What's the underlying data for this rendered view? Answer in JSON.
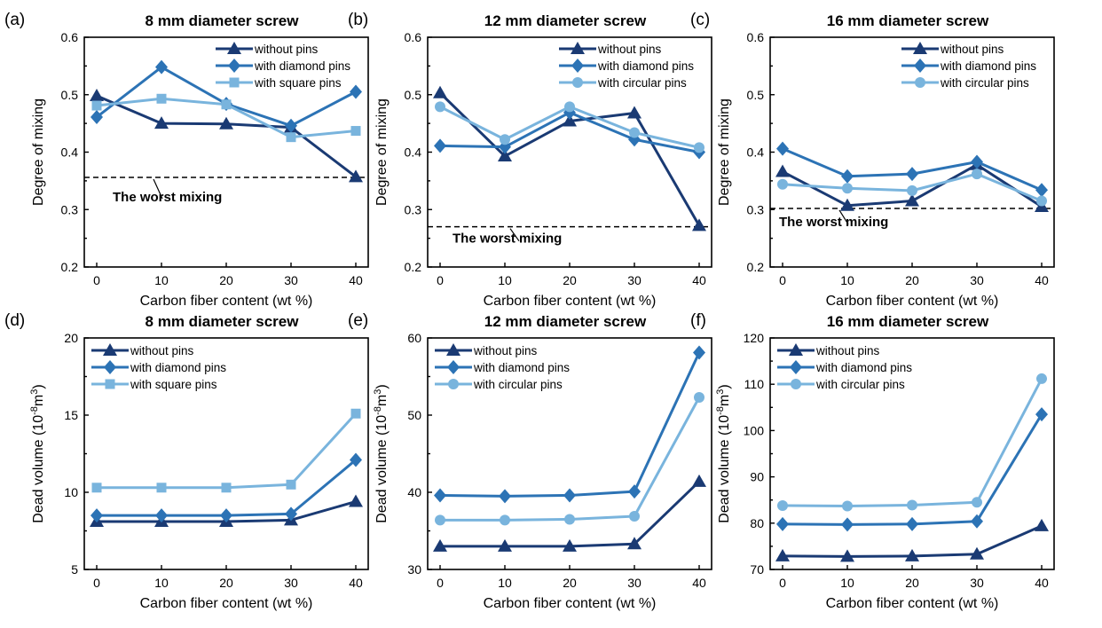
{
  "colors": {
    "without": "#1a3a73",
    "diamond": "#2c73b5",
    "light": "#79b4dd"
  },
  "chart_data": [
    {
      "type": "line",
      "panel": "(a)",
      "title": "8 mm diameter screw",
      "xlabel": "Carbon fiber content (wt %)",
      "ylabel": "Degree of mixing",
      "ylabel_sup": "",
      "ylabel_tail": "",
      "x": [
        0,
        10,
        20,
        30,
        40
      ],
      "xticks": [
        "0",
        "10",
        "20",
        "30",
        "40"
      ],
      "ylim": [
        0.2,
        0.6
      ],
      "yticks": [
        "0.2",
        "0.3",
        "0.4",
        "0.5",
        "0.6"
      ],
      "grid": false,
      "legend_position": "top-right",
      "series": [
        {
          "name": "without pins",
          "marker": "triangle",
          "color_key": "without",
          "values": [
            0.498,
            0.45,
            0.449,
            0.443,
            0.357
          ]
        },
        {
          "name": "with diamond pins",
          "marker": "diamond",
          "color_key": "diamond",
          "values": [
            0.461,
            0.548,
            0.484,
            0.446,
            0.505
          ]
        },
        {
          "name": "with square pins",
          "marker": "square",
          "color_key": "light",
          "values": [
            0.481,
            0.493,
            0.483,
            0.426,
            0.437
          ]
        }
      ],
      "reference_line": {
        "y": 0.356,
        "label": "The worst mixing"
      }
    },
    {
      "type": "line",
      "panel": "(b)",
      "title": "12 mm diameter screw",
      "xlabel": "Carbon fiber content (wt %)",
      "ylabel": "Degree of mixing",
      "ylabel_sup": "",
      "ylabel_tail": "",
      "x": [
        0,
        10,
        20,
        30,
        40
      ],
      "xticks": [
        "0",
        "10",
        "20",
        "30",
        "40"
      ],
      "ylim": [
        0.2,
        0.6
      ],
      "yticks": [
        "0.2",
        "0.3",
        "0.4",
        "0.5",
        "0.6"
      ],
      "grid": false,
      "legend_position": "top-right",
      "series": [
        {
          "name": "without pins",
          "marker": "triangle",
          "color_key": "without",
          "values": [
            0.503,
            0.393,
            0.454,
            0.468,
            0.272
          ]
        },
        {
          "name": "with diamond pins",
          "marker": "diamond",
          "color_key": "diamond",
          "values": [
            0.411,
            0.409,
            0.469,
            0.422,
            0.4
          ]
        },
        {
          "name": "with circular pins",
          "marker": "circle",
          "color_key": "light",
          "values": [
            0.479,
            0.422,
            0.479,
            0.434,
            0.408
          ]
        }
      ],
      "reference_line": {
        "y": 0.27,
        "label": "The worst mixing"
      }
    },
    {
      "type": "line",
      "panel": "(c)",
      "title": "16 mm diameter screw",
      "xlabel": "Carbon fiber content (wt %)",
      "ylabel": "Degree of mixing",
      "ylabel_sup": "",
      "ylabel_tail": "",
      "x": [
        0,
        10,
        20,
        30,
        40
      ],
      "xticks": [
        "0",
        "10",
        "20",
        "30",
        "40"
      ],
      "ylim": [
        0.2,
        0.6
      ],
      "yticks": [
        "0.2",
        "0.3",
        "0.4",
        "0.5",
        "0.6"
      ],
      "grid": false,
      "legend_position": "top-right",
      "series": [
        {
          "name": "without pins",
          "marker": "triangle",
          "color_key": "without",
          "values": [
            0.366,
            0.307,
            0.315,
            0.378,
            0.305
          ]
        },
        {
          "name": "with diamond pins",
          "marker": "diamond",
          "color_key": "diamond",
          "values": [
            0.406,
            0.358,
            0.362,
            0.383,
            0.334
          ]
        },
        {
          "name": "with circular pins",
          "marker": "circle",
          "color_key": "light",
          "values": [
            0.344,
            0.337,
            0.333,
            0.362,
            0.315
          ]
        }
      ],
      "reference_line": {
        "y": 0.302,
        "label": "The worst mixing"
      }
    },
    {
      "type": "line",
      "panel": "(d)",
      "title": "8 mm diameter screw",
      "xlabel": "Carbon fiber content (wt %)",
      "ylabel": "Dead volume (10",
      "ylabel_sup": "-8",
      "ylabel_tail": "m",
      "ylabel_sup2": "3",
      "ylabel_end": ")",
      "x": [
        0,
        10,
        20,
        30,
        40
      ],
      "xticks": [
        "0",
        "10",
        "20",
        "30",
        "40"
      ],
      "ylim": [
        5,
        20
      ],
      "yticks": [
        "5",
        "10",
        "15",
        "20"
      ],
      "grid": false,
      "legend_position": "top-left",
      "series": [
        {
          "name": "without pins",
          "marker": "triangle",
          "color_key": "without",
          "values": [
            8.1,
            8.1,
            8.1,
            8.2,
            9.4
          ]
        },
        {
          "name": "with diamond pins",
          "marker": "diamond",
          "color_key": "diamond",
          "values": [
            8.5,
            8.5,
            8.5,
            8.6,
            12.1
          ]
        },
        {
          "name": "with square pins",
          "marker": "square",
          "color_key": "light",
          "values": [
            10.3,
            10.3,
            10.3,
            10.5,
            15.1
          ]
        }
      ]
    },
    {
      "type": "line",
      "panel": "(e)",
      "title": "12 mm diameter screw",
      "xlabel": "Carbon fiber content (wt %)",
      "ylabel": "Dead volume (10",
      "ylabel_sup": "-8",
      "ylabel_tail": "m",
      "ylabel_sup2": "3",
      "ylabel_end": ")",
      "x": [
        0,
        10,
        20,
        30,
        40
      ],
      "xticks": [
        "0",
        "10",
        "20",
        "30",
        "40"
      ],
      "ylim": [
        30,
        60
      ],
      "yticks": [
        "30",
        "40",
        "50",
        "60"
      ],
      "grid": false,
      "legend_position": "top-left",
      "series": [
        {
          "name": "without pins",
          "marker": "triangle",
          "color_key": "without",
          "values": [
            33.0,
            33.0,
            33.0,
            33.3,
            41.4
          ]
        },
        {
          "name": "with diamond pins",
          "marker": "diamond",
          "color_key": "diamond",
          "values": [
            39.6,
            39.5,
            39.6,
            40.1,
            58.1
          ]
        },
        {
          "name": "with circular pins",
          "marker": "circle",
          "color_key": "light",
          "values": [
            36.4,
            36.4,
            36.5,
            36.9,
            52.3
          ]
        }
      ]
    },
    {
      "type": "line",
      "panel": "(f)",
      "title": "16 mm diameter screw",
      "xlabel": "Carbon fiber content (wt %)",
      "ylabel": "Dead volume (10",
      "ylabel_sup": "-8",
      "ylabel_tail": "m",
      "ylabel_sup2": "3",
      "ylabel_end": ")",
      "x": [
        0,
        10,
        20,
        30,
        40
      ],
      "xticks": [
        "0",
        "10",
        "20",
        "30",
        "40"
      ],
      "ylim": [
        70,
        120
      ],
      "yticks": [
        "70",
        "80",
        "90",
        "100",
        "110",
        "120"
      ],
      "grid": false,
      "legend_position": "top-left",
      "series": [
        {
          "name": "without pins",
          "marker": "triangle",
          "color_key": "without",
          "values": [
            72.9,
            72.8,
            72.9,
            73.3,
            79.4
          ]
        },
        {
          "name": "with diamond pins",
          "marker": "diamond",
          "color_key": "diamond",
          "values": [
            79.8,
            79.7,
            79.8,
            80.4,
            103.5
          ]
        },
        {
          "name": "with circular pins",
          "marker": "circle",
          "color_key": "light",
          "values": [
            83.8,
            83.7,
            83.9,
            84.5,
            111.2
          ]
        }
      ]
    }
  ]
}
